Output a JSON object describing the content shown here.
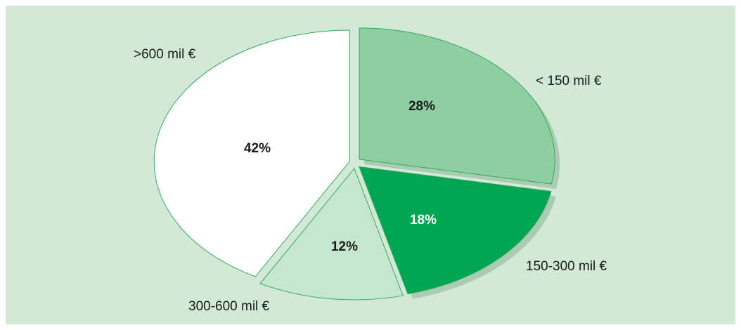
{
  "chart_data": {
    "type": "pie",
    "categories": [
      "< 150 mil €",
      "150-300 mil €",
      "300-600 mil €",
      ">600 mil €"
    ],
    "values": [
      28,
      18,
      12,
      42
    ],
    "value_labels": [
      "28%",
      "18%",
      "12%",
      "42%"
    ],
    "colors": [
      "#8dcfa1",
      "#00a651",
      "#c6e7cf",
      "#ffffff"
    ]
  }
}
